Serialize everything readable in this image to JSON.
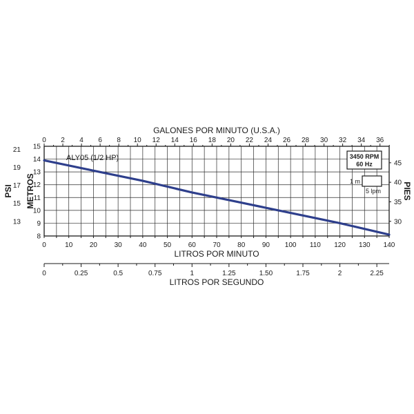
{
  "chart_data": {
    "type": "line",
    "series": [
      {
        "name": "ALY05 (1/2 HP)",
        "x": [
          0,
          20,
          40,
          60,
          80,
          100,
          120,
          140
        ],
        "y": [
          13.9,
          13.1,
          12.3,
          11.4,
          10.6,
          9.8,
          9.0,
          8.1
        ]
      }
    ],
    "series_label": "ALY05 (1/2 HP)",
    "bottom_axis": {
      "label": "LITROS POR MINUTO",
      "range": [
        0,
        140
      ],
      "ticks": [
        "0",
        "10",
        "20",
        "30",
        "40",
        "50",
        "60",
        "70",
        "80",
        "90",
        "100",
        "110",
        "120",
        "130",
        "140"
      ]
    },
    "top_axis": {
      "label": "GALONES POR MINUTO (U.S.A.)",
      "range": [
        0,
        37
      ],
      "ticks": [
        "0",
        "2",
        "4",
        "6",
        "8",
        "10",
        "12",
        "14",
        "16",
        "18",
        "20",
        "22",
        "24",
        "26",
        "28",
        "30",
        "32",
        "34",
        "36"
      ]
    },
    "second_bottom_axis": {
      "label": "LITROS POR SEGUNDO",
      "range": [
        0,
        2.333
      ],
      "ticks": [
        "0",
        "0.25",
        "0.5",
        "0.75",
        "1",
        "1.25",
        "1.50",
        "1.75",
        "2",
        "2.25"
      ]
    },
    "left_axis_metros": {
      "label": "METROS",
      "range": [
        8,
        15
      ],
      "ticks": [
        "8",
        "9",
        "10",
        "11",
        "12",
        "13",
        "14",
        "15"
      ]
    },
    "left_axis_psi": {
      "label": "PSI",
      "ticks": [
        "13",
        "15",
        "17",
        "19",
        "21"
      ]
    },
    "right_axis_pies": {
      "label": "PIES",
      "ticks": [
        "30",
        "35",
        "40",
        "45"
      ]
    },
    "info_box": {
      "line1": "3450 RPM",
      "line2": "60 Hz"
    },
    "scale_legend": {
      "vertical_label": "1 m",
      "horizontal_label": "5 lpm"
    },
    "grid": true
  }
}
